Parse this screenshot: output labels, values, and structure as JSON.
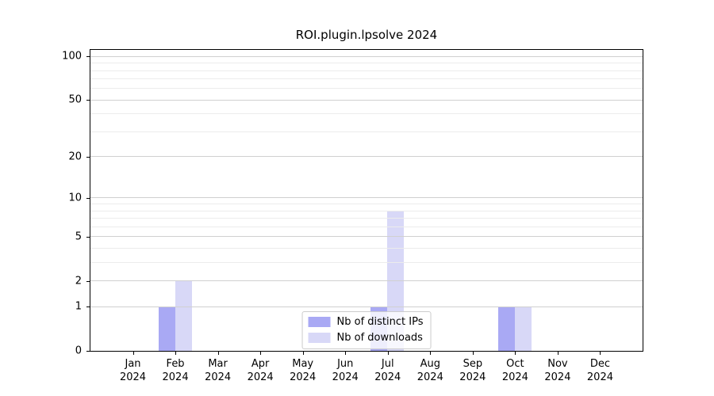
{
  "chart_data": {
    "type": "bar",
    "title": "ROI.plugin.lpsolve 2024",
    "categories": [
      "Jan",
      "Feb",
      "Mar",
      "Apr",
      "May",
      "Jun",
      "Jul",
      "Aug",
      "Sep",
      "Oct",
      "Nov",
      "Dec"
    ],
    "x_tick_second_line": "2024",
    "series": [
      {
        "name": "Nb of distinct IPs",
        "color": "#a9a9f4",
        "values": [
          0,
          1,
          0,
          0,
          0,
          0,
          1,
          0,
          0,
          1,
          0,
          0
        ]
      },
      {
        "name": "Nb of downloads",
        "color": "#d8d8f7",
        "values": [
          0,
          2,
          0,
          0,
          0,
          0,
          8,
          0,
          0,
          1,
          0,
          0
        ]
      }
    ],
    "y_scale": "log1p",
    "ylim": [
      0,
      111
    ],
    "y_major_ticks": [
      0,
      1,
      2,
      5,
      10,
      20,
      50,
      100
    ],
    "y_minor_ticks": [
      3,
      4,
      6,
      7,
      8,
      9,
      30,
      40,
      60,
      70,
      80,
      90
    ],
    "grid": "horizontal",
    "legend_position": "lower-center-inside",
    "colors": {
      "axis": "#000000",
      "grid_major": "#d0d0d0",
      "grid_minor": "#ececec",
      "background": "#ffffff"
    }
  }
}
